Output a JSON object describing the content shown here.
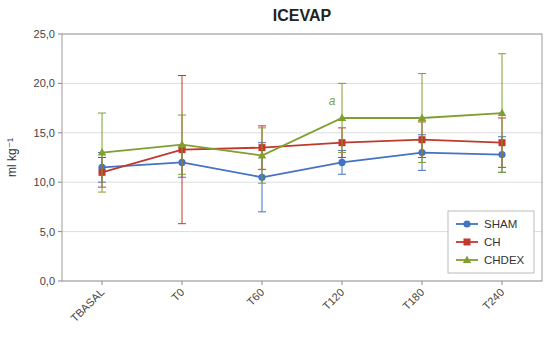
{
  "chart_data": {
    "type": "line",
    "title": "ICEVAP",
    "y_label": "ml kg⁻¹",
    "categories": [
      "TBASAL",
      "T0",
      "T60",
      "T120",
      "T180",
      "T240"
    ],
    "series": [
      {
        "name": "SHAM",
        "color": "#4472c4",
        "marker": "circle",
        "values": [
          11.5,
          12.0,
          10.5,
          12.0,
          13.0,
          12.8
        ],
        "errors": [
          1.5,
          1.5,
          3.5,
          1.2,
          1.8,
          1.8
        ]
      },
      {
        "name": "CH",
        "color": "#c0392b",
        "marker": "square",
        "values": [
          11.0,
          13.3,
          13.5,
          14.0,
          14.3,
          14.0
        ],
        "errors": [
          1.5,
          7.5,
          2.2,
          1.5,
          1.8,
          2.5
        ]
      },
      {
        "name": "CHDEX",
        "color": "#7f9f2f",
        "marker": "triangle",
        "values": [
          13.0,
          13.8,
          12.7,
          16.5,
          16.5,
          17.0
        ],
        "errors": [
          4.0,
          3.0,
          2.8,
          3.5,
          4.5,
          6.0
        ]
      }
    ],
    "annotations": [
      {
        "text": "a",
        "x": "T120",
        "y": 17.8
      }
    ],
    "ylim": [
      0.0,
      25.0
    ],
    "yticks": [
      {
        "value": 0.0,
        "label": "0,0"
      },
      {
        "value": 5.0,
        "label": "5,0"
      },
      {
        "value": 10.0,
        "label": "10,0"
      },
      {
        "value": 15.0,
        "label": "15,0"
      },
      {
        "value": 20.0,
        "label": "20,0"
      },
      {
        "value": 25.0,
        "label": "25,0"
      }
    ],
    "grid": true,
    "legend": "lower right"
  }
}
